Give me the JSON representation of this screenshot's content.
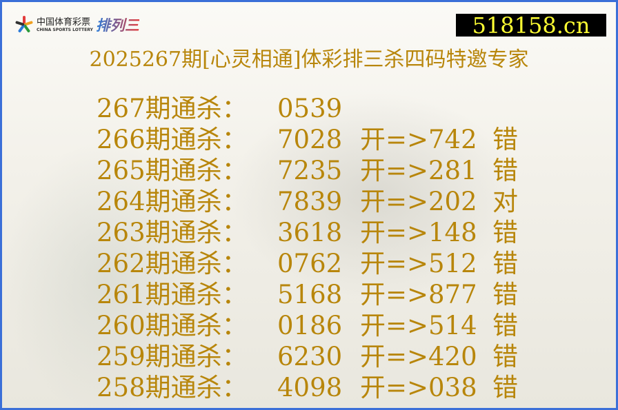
{
  "logo": {
    "cn": "中国体育彩票",
    "en": "CHINA SPORTS LOTTERY",
    "game": "排列三"
  },
  "site": "518158.cn",
  "title": "2025267期[心灵相通]体彩排三杀四码特邀专家",
  "colors": {
    "text": "#b8860b",
    "border": "#3b6fd8",
    "site_bg": "#000000",
    "site_text": "#ffff33"
  },
  "rows": [
    {
      "label": "267期通杀：",
      "code": "0539",
      "open": "",
      "result": ""
    },
    {
      "label": "266期通杀：",
      "code": "7028",
      "open": "开=>742",
      "result": "错"
    },
    {
      "label": "265期通杀：",
      "code": "7235",
      "open": "开=>281",
      "result": "错"
    },
    {
      "label": "264期通杀：",
      "code": "7839",
      "open": "开=>202",
      "result": "对"
    },
    {
      "label": "263期通杀：",
      "code": "3618",
      "open": "开=>148",
      "result": "错"
    },
    {
      "label": "262期通杀：",
      "code": "0762",
      "open": "开=>512",
      "result": "错"
    },
    {
      "label": "261期通杀：",
      "code": "5168",
      "open": "开=>877",
      "result": "错"
    },
    {
      "label": "260期通杀：",
      "code": "0186",
      "open": "开=>514",
      "result": "错"
    },
    {
      "label": "259期通杀：",
      "code": "6230",
      "open": "开=>420",
      "result": "错"
    },
    {
      "label": "258期通杀：",
      "code": "4098",
      "open": "开=>038",
      "result": "错"
    }
  ]
}
